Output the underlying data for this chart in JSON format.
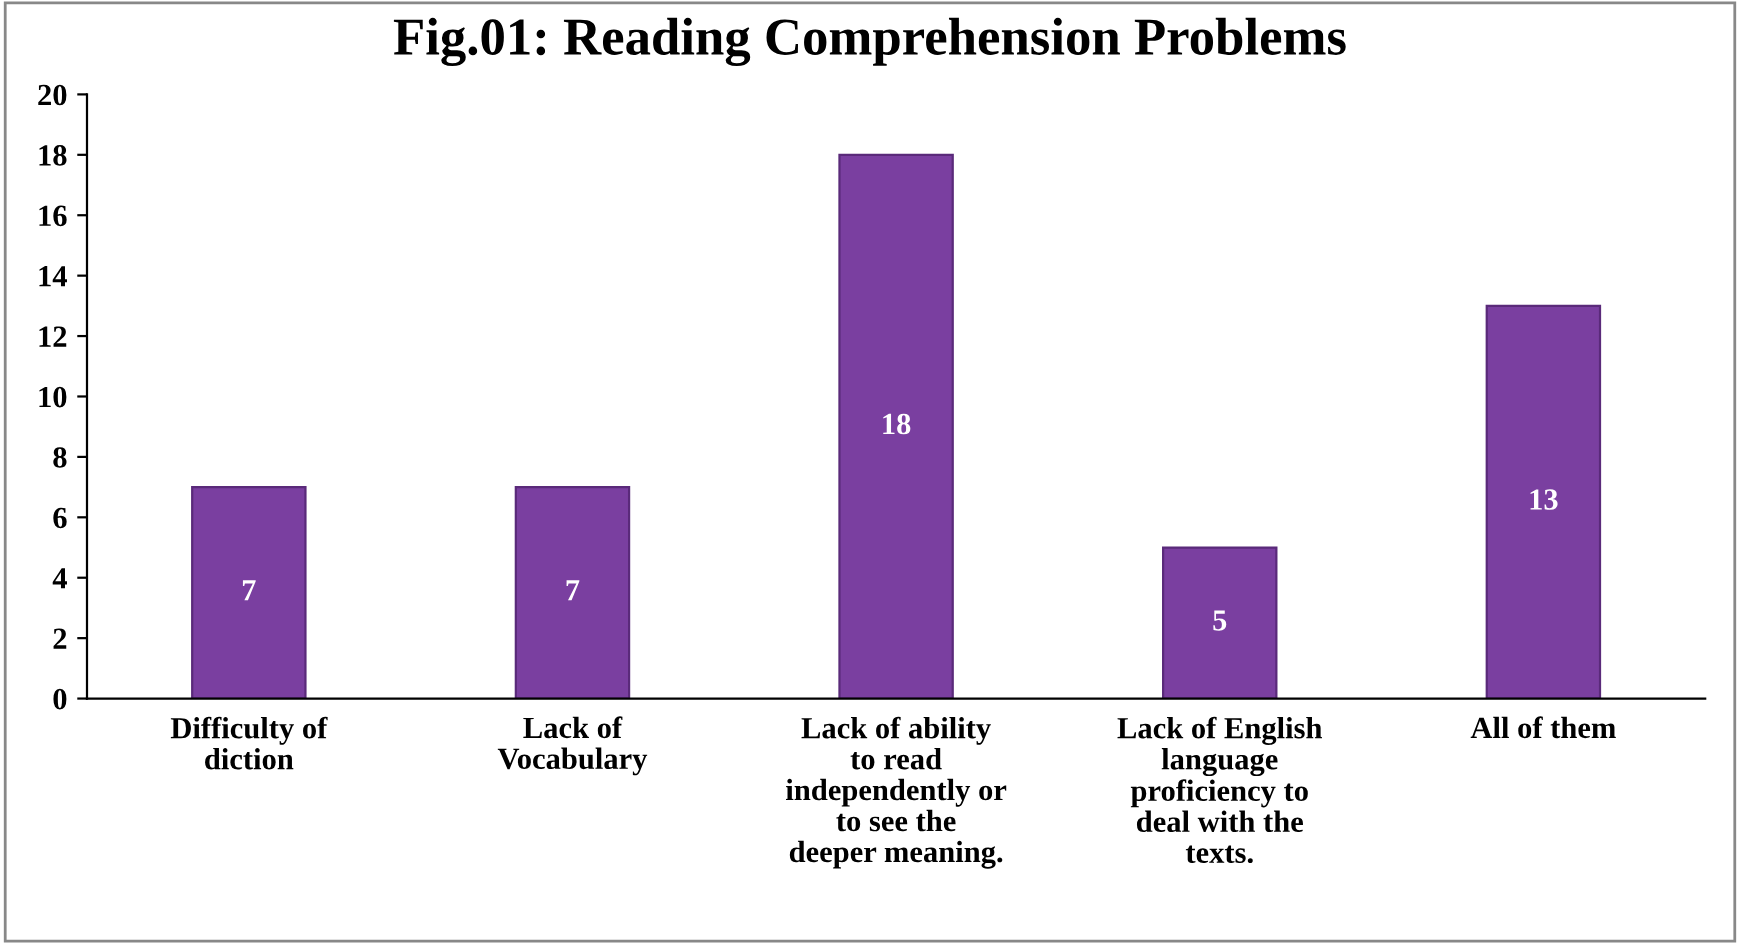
{
  "chart_data": {
    "type": "bar",
    "title": "Fig.01: Reading Comprehension Problems",
    "categories": [
      "Difficulty of diction",
      "Lack of Vocabulary",
      "Lack of ability to read independently or to see the deeper meaning.",
      "Lack of English language proficiency to deal with the texts.",
      "All of them"
    ],
    "values": [
      7,
      7,
      18,
      5,
      13
    ],
    "color": "#7a3fa0",
    "ylim": [
      0,
      20
    ],
    "yticks": [
      0,
      2,
      4,
      6,
      8,
      10,
      12,
      14,
      16,
      18,
      20
    ],
    "grid": false,
    "data_labels": true
  }
}
